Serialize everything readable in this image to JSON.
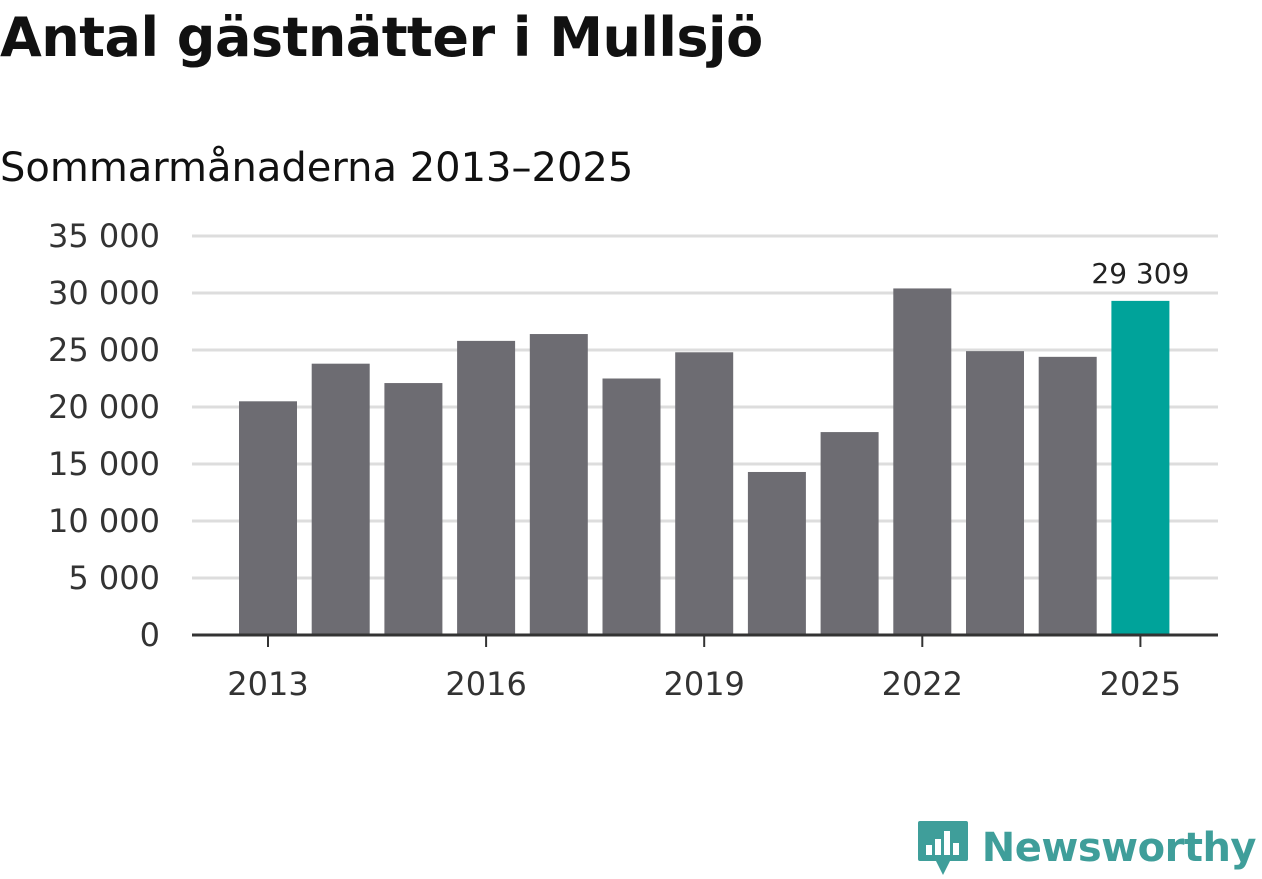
{
  "colors": {
    "bar": "#6d6c72",
    "highlight": "#00a39a",
    "grid": "#dddddd",
    "axis": "#333333",
    "brand": "#3f9e9a"
  },
  "brand": {
    "name": "Newsworthy",
    "icon": "newsworthy-chart-bubble-icon"
  },
  "chart_data": {
    "type": "bar",
    "title": "Antal gästnätter i Mullsjö",
    "subtitle": "Sommarmånaderna 2013–2025",
    "xlabel": "",
    "ylabel": "",
    "categories": [
      "2013",
      "2014",
      "2015",
      "2016",
      "2017",
      "2018",
      "2019",
      "2020",
      "2021",
      "2022",
      "2023",
      "2024",
      "2025"
    ],
    "values": [
      20500,
      23800,
      22100,
      25800,
      26400,
      22500,
      24800,
      14300,
      17800,
      30400,
      24900,
      24400,
      29309
    ],
    "x_tick_labels": [
      "2013",
      "2016",
      "2019",
      "2022",
      "2025"
    ],
    "y_ticks": [
      0,
      5000,
      10000,
      15000,
      20000,
      25000,
      30000,
      35000
    ],
    "y_tick_labels": [
      "0",
      "5 000",
      "10 000",
      "15 000",
      "20 000",
      "25 000",
      "30 000",
      "35 000"
    ],
    "ylim": [
      0,
      35000
    ],
    "grid": true,
    "legend": "none",
    "highlight_category": "2025",
    "annotations": [
      {
        "category": "2025",
        "text": "29 309"
      }
    ]
  }
}
